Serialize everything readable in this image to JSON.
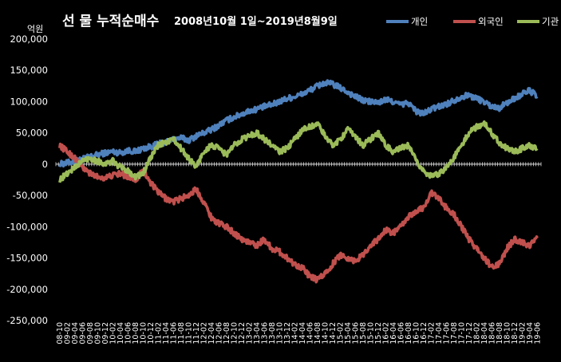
{
  "chart_data": {
    "type": "line",
    "title": "선 물 누적순매수",
    "subtitle": "2008년10월 1일~2019년8월9일",
    "ylabel": "억원",
    "xlabel": "",
    "ylim": [
      -250000,
      200000
    ],
    "yticks": [
      "200,000",
      "150,000",
      "100,000",
      "50,000",
      "0",
      "-50,000",
      "-100,000",
      "-150,000",
      "-200,000",
      "-250,000"
    ],
    "ytick_values": [
      200000,
      150000,
      100000,
      50000,
      0,
      -50000,
      -100000,
      -150000,
      -200000,
      -250000
    ],
    "legend_position": "top-right",
    "grid": false,
    "x_labels": [
      "08-10",
      "09-02",
      "09-04",
      "09-06",
      "09-08",
      "09-10",
      "09-12",
      "10-02",
      "10-04",
      "10-06",
      "10-08",
      "10-10",
      "10-12",
      "11-02",
      "11-04",
      "11-06",
      "11-08",
      "11-10",
      "11-12",
      "12-02",
      "12-04",
      "12-06",
      "12-08",
      "12-10",
      "12-12",
      "13-02",
      "13-04",
      "13-06",
      "13-08",
      "13-10",
      "13-12",
      "14-02",
      "14-04",
      "14-06",
      "14-08",
      "14-10",
      "14-12",
      "15-02",
      "15-04",
      "15-06",
      "15-08",
      "15-10",
      "15-12",
      "16-02",
      "16-04",
      "16-06",
      "16-08",
      "16-10",
      "16-12",
      "17-02",
      "17-04",
      "17-06",
      "17-08",
      "17-10",
      "17-12",
      "18-02",
      "18-04",
      "18-06",
      "18-08",
      "18-10",
      "18-12",
      "19-02",
      "19-04",
      "19-06"
    ],
    "series": [
      {
        "name": "개인",
        "color": "#4F81BD",
        "values": [
          0,
          2000,
          5000,
          8000,
          12000,
          15000,
          18000,
          20000,
          18000,
          22000,
          20000,
          25000,
          28000,
          32000,
          35000,
          40000,
          42000,
          38000,
          45000,
          50000,
          55000,
          62000,
          70000,
          75000,
          80000,
          85000,
          88000,
          92000,
          95000,
          100000,
          105000,
          108000,
          112000,
          118000,
          125000,
          130000,
          128000,
          122000,
          115000,
          108000,
          102000,
          100000,
          98000,
          103000,
          100000,
          95000,
          98000,
          85000,
          80000,
          88000,
          92000,
          96000,
          102000,
          108000,
          110000,
          105000,
          100000,
          92000,
          90000,
          98000,
          105000,
          112000,
          118000,
          108000
        ]
      },
      {
        "name": "외국인",
        "color": "#C0504D",
        "values": [
          30000,
          20000,
          10000,
          -5000,
          -15000,
          -20000,
          -22000,
          -18000,
          -15000,
          -20000,
          -25000,
          -10000,
          -30000,
          -45000,
          -55000,
          -60000,
          -55000,
          -50000,
          -40000,
          -60000,
          -85000,
          -95000,
          -100000,
          -110000,
          -120000,
          -125000,
          -130000,
          -120000,
          -135000,
          -140000,
          -150000,
          -160000,
          -165000,
          -180000,
          -185000,
          -175000,
          -160000,
          -145000,
          -150000,
          -155000,
          -145000,
          -130000,
          -120000,
          -105000,
          -110000,
          -100000,
          -85000,
          -75000,
          -70000,
          -45000,
          -55000,
          -70000,
          -80000,
          -100000,
          -120000,
          -135000,
          -150000,
          -165000,
          -160000,
          -135000,
          -120000,
          -125000,
          -130000,
          -118000
        ]
      },
      {
        "name": "기관",
        "color": "#9BBB59",
        "values": [
          -25000,
          -15000,
          -5000,
          5000,
          10000,
          5000,
          0,
          5000,
          -5000,
          -10000,
          -20000,
          -15000,
          10000,
          30000,
          35000,
          40000,
          25000,
          10000,
          -5000,
          20000,
          30000,
          25000,
          15000,
          30000,
          40000,
          45000,
          50000,
          40000,
          30000,
          20000,
          25000,
          40000,
          55000,
          60000,
          65000,
          45000,
          30000,
          40000,
          55000,
          45000,
          30000,
          40000,
          50000,
          30000,
          20000,
          25000,
          30000,
          5000,
          -10000,
          -20000,
          -15000,
          -5000,
          10000,
          30000,
          50000,
          60000,
          65000,
          50000,
          35000,
          25000,
          20000,
          25000,
          30000,
          25000
        ]
      }
    ]
  }
}
